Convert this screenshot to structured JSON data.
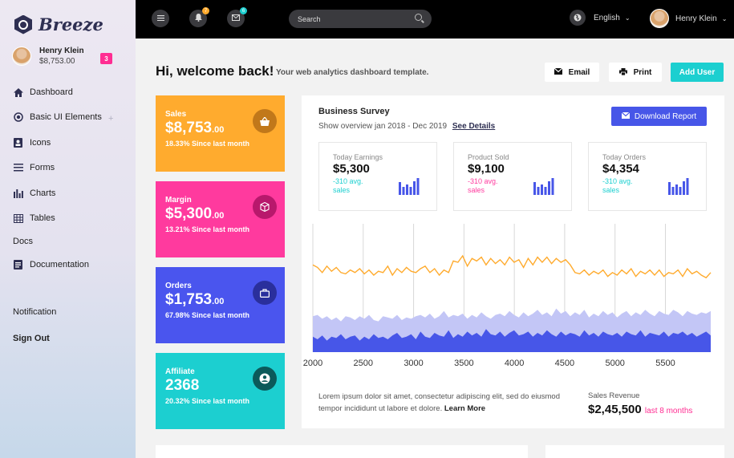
{
  "sidebar": {
    "brand": "Breeze",
    "user_name": "Henry Klein",
    "user_amount": "$8,753.00",
    "badge": "3",
    "items": [
      {
        "label": "Dashboard"
      },
      {
        "label": "Basic UI Elements"
      },
      {
        "label": "Icons"
      },
      {
        "label": "Forms"
      },
      {
        "label": "Charts"
      },
      {
        "label": "Tables"
      },
      {
        "label": "Docs"
      },
      {
        "label": "Documentation"
      },
      {
        "label": "Notification"
      },
      {
        "label": "Sign Out"
      }
    ],
    "plus": "+"
  },
  "topbar": {
    "search_placeholder": "Search",
    "notif_count": "7",
    "mail_count": "6",
    "language": "English",
    "user_name": "Henry Klein"
  },
  "header": {
    "title": "Hi, welcome back!",
    "subtitle": "Your web analytics dashboard template.",
    "email_label": "Email",
    "print_label": "Print",
    "add_user_label": "Add User"
  },
  "stats": [
    {
      "label": "Sales",
      "value": "$8,753",
      "cents": ".00",
      "sub": "18.33% Since last month",
      "color": "#ffab2e"
    },
    {
      "label": "Margin",
      "value": "$5,300",
      "cents": ".00",
      "sub": "13.21% Since last month",
      "color": "#ff3a9e"
    },
    {
      "label": "Orders",
      "value": "$1,753",
      "cents": ".00",
      "sub": "67.98% Since last month",
      "color": "#4a55ee"
    },
    {
      "label": "Affiliate",
      "value": "2368",
      "cents": "",
      "sub": "20.32% Since last month",
      "color": "#1ccfd0"
    }
  ],
  "survey": {
    "title": "Business Survey",
    "subtitle": "Show overview jan 2018 - Dec 2019",
    "see_details": "See Details",
    "download_label": "Download Report",
    "mini": [
      {
        "label": "Today Earnings",
        "value": "$5,300",
        "delta": "-310 avg.",
        "unit": "sales",
        "delta_color": "#1ccfd0"
      },
      {
        "label": "Product Sold",
        "value": "$9,100",
        "delta": "-310 avg.",
        "unit": "sales",
        "delta_color": "#ff3a9e"
      },
      {
        "label": "Today Orders",
        "value": "$4,354",
        "delta": "-310 avg.",
        "unit": "sales",
        "delta_color": "#1ccfd0"
      }
    ],
    "footer_text": "Lorem ipsum dolor sit amet, consectetur adipiscing elit, sed do eiusmod tempor incididunt ut labore et dolore.",
    "learn_more": "Learn More",
    "revenue_label": "Sales Revenue",
    "revenue_value": "$2,45,500",
    "revenue_period": "last 8 months"
  },
  "chart_data": {
    "type": "area",
    "xlabel": "",
    "ylabel": "",
    "x_ticks": [
      2000,
      2500,
      3000,
      3500,
      4000,
      4500,
      5000,
      5500
    ],
    "xlim": [
      2000,
      5950
    ],
    "ylim": [
      0,
      100
    ],
    "grid": "vertical",
    "series": [
      {
        "color": "#ffab2e",
        "type": "line",
        "values": [
          68,
          66,
          62,
          67,
          63,
          66,
          62,
          61,
          64,
          62,
          65,
          61,
          64,
          60,
          63,
          62,
          67,
          60,
          65,
          62,
          66,
          63,
          62,
          65,
          67,
          62,
          65,
          60,
          64,
          62,
          71,
          70,
          75,
          67,
          73,
          71,
          74,
          68,
          73,
          69,
          72,
          68,
          74,
          70,
          72,
          66,
          73,
          68,
          74,
          70,
          74,
          69,
          73,
          70,
          72,
          68,
          62,
          61,
          64,
          60,
          63,
          61,
          64,
          59,
          62,
          60,
          64,
          61,
          65,
          59,
          63,
          61,
          64,
          60,
          64,
          59,
          62,
          61,
          64,
          59,
          65,
          61,
          63,
          60,
          58,
          62
        ]
      },
      {
        "color": "#c3c6f6",
        "type": "area",
        "values": [
          28,
          29,
          26,
          28,
          25,
          27,
          24,
          28,
          27,
          25,
          28,
          26,
          29,
          25,
          24,
          28,
          27,
          26,
          29,
          25,
          27,
          26,
          28,
          29,
          27,
          30,
          26,
          28,
          32,
          27,
          29,
          28,
          30,
          26,
          29,
          27,
          31,
          28,
          26,
          29,
          30,
          28,
          32,
          29,
          27,
          31,
          28,
          30,
          33,
          29,
          31,
          28,
          34,
          30,
          32,
          28,
          31,
          29,
          33,
          27,
          30,
          28,
          32,
          29,
          31,
          27,
          30,
          32,
          28,
          31,
          29,
          33,
          30,
          28,
          32,
          30,
          29,
          33,
          31,
          28,
          32,
          30,
          29,
          31,
          30,
          32
        ]
      },
      {
        "color": "#4756e8",
        "type": "area",
        "values": [
          12,
          10,
          13,
          9,
          12,
          11,
          14,
          10,
          12,
          13,
          9,
          12,
          10,
          14,
          11,
          12,
          10,
          13,
          15,
          11,
          12,
          14,
          10,
          16,
          12,
          11,
          15,
          13,
          12,
          17,
          11,
          14,
          12,
          16,
          13,
          15,
          12,
          18,
          14,
          13,
          16,
          12,
          15,
          17,
          13,
          14,
          16,
          12,
          15,
          13,
          17,
          14,
          12,
          16,
          13,
          15,
          14,
          12,
          17,
          13,
          15,
          12,
          16,
          14,
          13,
          15,
          12,
          16,
          14,
          13,
          17,
          12,
          15,
          14,
          13,
          16,
          12,
          15,
          14,
          16,
          13,
          15,
          12,
          14,
          16,
          13
        ]
      }
    ]
  }
}
